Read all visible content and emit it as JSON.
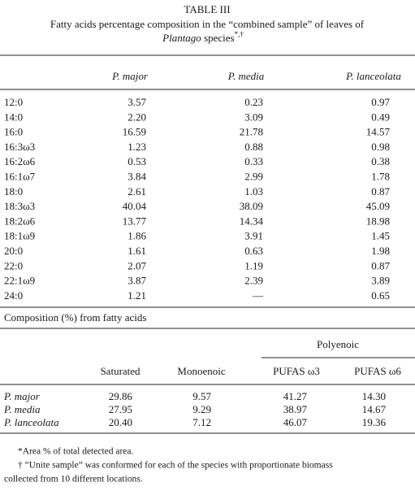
{
  "title": "TABLE III",
  "caption": {
    "line1": "Fatty acids percentage composition in the “combined sample” of leaves of",
    "genus": "Plantago",
    "rest": "species",
    "marks": "*,†"
  },
  "table1": {
    "columns": [
      "P. major",
      "P. media",
      "P. lanceolata"
    ],
    "rows": [
      [
        "12:0",
        "3.57",
        "0.23",
        "0.97"
      ],
      [
        "14:0",
        "2.20",
        "3.09",
        "0.49"
      ],
      [
        "16:0",
        "16.59",
        "21.78",
        "14.57"
      ],
      [
        "16:3ω3",
        "1.23",
        "0.88",
        "0.98"
      ],
      [
        "16:2ω6",
        "0.53",
        "0.33",
        "0.38"
      ],
      [
        "16:1ω7",
        "3.84",
        "2.99",
        "1.78"
      ],
      [
        "18:0",
        "2.61",
        "1.03",
        "0.87"
      ],
      [
        "18:3ω3",
        "40.04",
        "38.09",
        "45.09"
      ],
      [
        "18:2ω6",
        "13.77",
        "14.34",
        "18.98"
      ],
      [
        "18:1ω9",
        "1.86",
        "3.91",
        "1.45"
      ],
      [
        "20:0",
        "1.61",
        "0.63",
        "1.98"
      ],
      [
        "22:0",
        "2.07",
        "1.19",
        "0.87"
      ],
      [
        "22:1ω9",
        "3.87",
        "2.39",
        "3.89"
      ],
      [
        "24:0",
        "1.21",
        "—",
        "0.65"
      ]
    ]
  },
  "table2": {
    "heading": "Composition (%) from fatty acids",
    "group": "Polyenoic",
    "columns": [
      "Saturated",
      "Monoenoic",
      "PUFAS ω3",
      "PUFAS ω6"
    ],
    "rows": [
      [
        "P. major",
        "29.86",
        "9.57",
        "41.27",
        "14.30"
      ],
      [
        "P. media",
        "27.95",
        "9.29",
        "38.97",
        "14.67"
      ],
      [
        "P. lanceolata",
        "20.40",
        "7.12",
        "46.07",
        "19.36"
      ]
    ]
  },
  "footnotes": [
    "*Area % of total detected area.",
    "† “Unite sample” was conformed for each of the species with proportionate biomass",
    "collected from 10 different locations."
  ]
}
